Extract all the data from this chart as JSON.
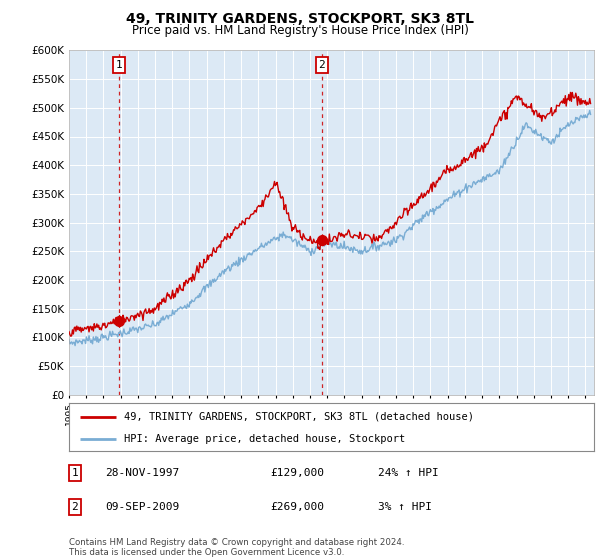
{
  "title": "49, TRINITY GARDENS, STOCKPORT, SK3 8TL",
  "subtitle": "Price paid vs. HM Land Registry's House Price Index (HPI)",
  "ylim": [
    0,
    600000
  ],
  "yticks": [
    0,
    50000,
    100000,
    150000,
    200000,
    250000,
    300000,
    350000,
    400000,
    450000,
    500000,
    550000,
    600000
  ],
  "ytick_labels": [
    "£0",
    "£50K",
    "£100K",
    "£150K",
    "£200K",
    "£250K",
    "£300K",
    "£350K",
    "£400K",
    "£450K",
    "£500K",
    "£550K",
    "£600K"
  ],
  "xlim_start": 1995.0,
  "xlim_end": 2025.5,
  "background_color": "#ffffff",
  "plot_bg_color": "#dce9f5",
  "grid_color": "#ffffff",
  "red_line_color": "#cc0000",
  "blue_line_color": "#7aadd4",
  "marker_color": "#cc0000",
  "sale1_x": 1997.91,
  "sale1_y": 129000,
  "sale2_x": 2009.69,
  "sale2_y": 269000,
  "legend_line1": "49, TRINITY GARDENS, STOCKPORT, SK3 8TL (detached house)",
  "legend_line2": "HPI: Average price, detached house, Stockport",
  "table_row1": [
    "1",
    "28-NOV-1997",
    "£129,000",
    "24% ↑ HPI"
  ],
  "table_row2": [
    "2",
    "09-SEP-2009",
    "£269,000",
    "3% ↑ HPI"
  ],
  "footnote": "Contains HM Land Registry data © Crown copyright and database right 2024.\nThis data is licensed under the Open Government Licence v3.0."
}
